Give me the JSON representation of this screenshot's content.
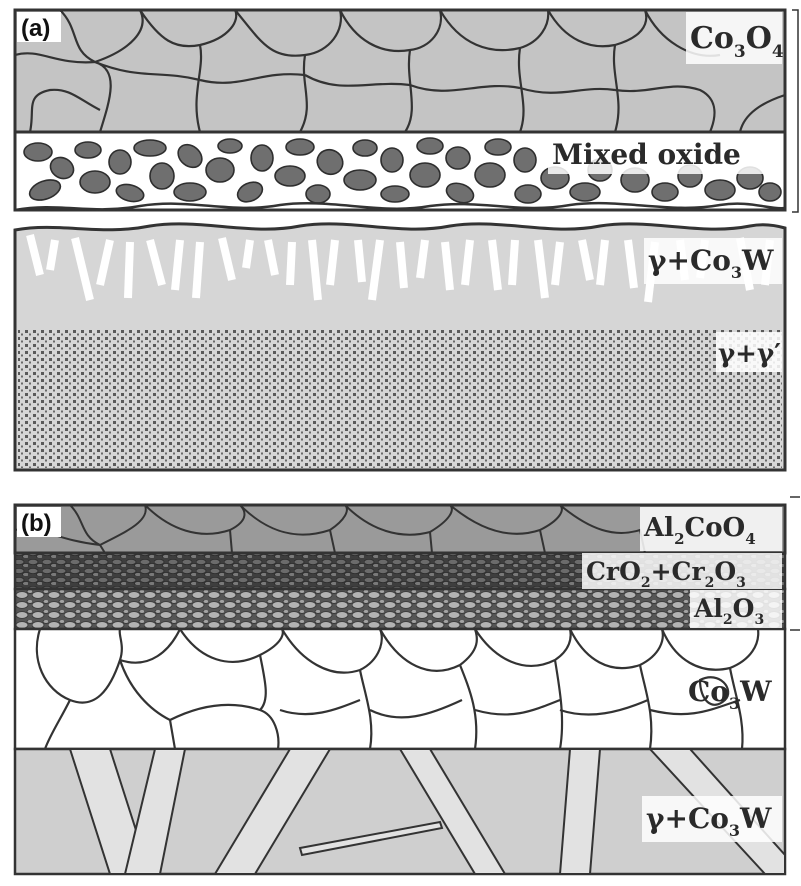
{
  "panel_a": {
    "label": "(a)",
    "layers": {
      "co3o4": {
        "main": "Co",
        "sub1": "3",
        "mid": "O",
        "sub2": "4"
      },
      "mixed_oxide": "Mixed oxide",
      "gamma_co3w": {
        "pre": "γ+Co",
        "sub": "3",
        "post": "W"
      },
      "gamma_gamma_prime": "γ+γ′"
    }
  },
  "panel_b": {
    "label": "(b)",
    "layers": {
      "al2coo4": {
        "a": "Al",
        "s1": "2",
        "b": "CoO",
        "s2": "4"
      },
      "cro2_cr2o3": {
        "a": "CrO",
        "s1": "2",
        "b": "+Cr",
        "s2": "2",
        "c": "O",
        "s3": "3"
      },
      "al2o3": {
        "a": "Al",
        "s1": "2",
        "b": "O",
        "s2": "3"
      },
      "co3w": {
        "a": "Co",
        "s1": "3",
        "b": "W"
      },
      "gamma_co3w": {
        "pre": "γ+Co",
        "sub": "3",
        "post": "W"
      }
    }
  },
  "colors": {
    "outline": "#333333",
    "co3o4_fill": "#c4c4c4",
    "grain_dark": "#6f6f6f",
    "substrate_light": "#d6d6d6",
    "precipitate": "#5a5a5a",
    "al2coo4_fill": "#9a9a9a",
    "cr_oxide": "#4a4a4a",
    "al2o3_grain": "#a8a8a8",
    "matrix_b": "#cfcfcf",
    "lath": "#e2e2e2"
  }
}
